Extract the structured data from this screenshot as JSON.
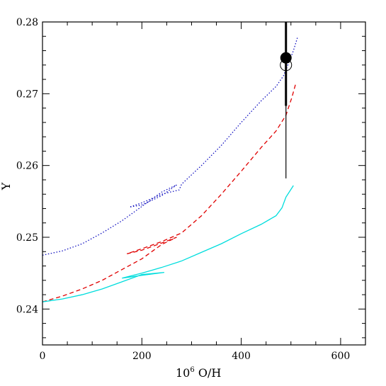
{
  "chart_data": {
    "type": "line",
    "xlabel": "10",
    "xlabel_sup": "6",
    "xlabel_rest": " O/H",
    "ylabel": "Y",
    "xlim": [
      0,
      650
    ],
    "ylim": [
      0.235,
      0.28
    ],
    "x_ticks": [
      0,
      200,
      400,
      600
    ],
    "x_tick_labels": [
      "0",
      "200",
      "400",
      "600"
    ],
    "y_ticks": [
      0.24,
      0.25,
      0.26,
      0.27,
      0.28
    ],
    "y_tick_labels": [
      "0.24",
      "0.25",
      "0.26",
      "0.27",
      "0.28"
    ],
    "grid": false,
    "series": [
      {
        "style": "dotted",
        "color": "#1010c0",
        "points": [
          [
            0,
            0.2475
          ],
          [
            40,
            0.2481
          ],
          [
            80,
            0.2491
          ],
          [
            120,
            0.2506
          ],
          [
            160,
            0.2523
          ],
          [
            200,
            0.2543
          ],
          [
            240,
            0.2563
          ],
          [
            270,
            0.2573
          ],
          [
            240,
            0.2558
          ],
          [
            200,
            0.2545
          ],
          [
            175,
            0.2542
          ],
          [
            200,
            0.2548
          ],
          [
            240,
            0.256
          ],
          [
            275,
            0.2566
          ],
          [
            280,
            0.2574
          ],
          [
            320,
            0.26
          ],
          [
            360,
            0.2628
          ],
          [
            400,
            0.266
          ],
          [
            440,
            0.269
          ],
          [
            470,
            0.271
          ],
          [
            485,
            0.2725
          ],
          [
            495,
            0.2742
          ],
          [
            505,
            0.276
          ],
          [
            513,
            0.2778
          ]
        ]
      },
      {
        "style": "dashed",
        "color": "#e00000",
        "points": [
          [
            0,
            0.241
          ],
          [
            40,
            0.2418
          ],
          [
            80,
            0.2428
          ],
          [
            120,
            0.244
          ],
          [
            160,
            0.2455
          ],
          [
            200,
            0.247
          ],
          [
            240,
            0.249
          ],
          [
            270,
            0.25
          ],
          [
            240,
            0.2492
          ],
          [
            200,
            0.2482
          ],
          [
            170,
            0.2477
          ],
          [
            200,
            0.2484
          ],
          [
            240,
            0.2494
          ],
          [
            280,
            0.2506
          ],
          [
            320,
            0.253
          ],
          [
            360,
            0.256
          ],
          [
            400,
            0.2592
          ],
          [
            440,
            0.2625
          ],
          [
            470,
            0.2648
          ],
          [
            490,
            0.267
          ],
          [
            502,
            0.2695
          ],
          [
            510,
            0.2715
          ]
        ]
      },
      {
        "style": "solid",
        "color": "#00dddd",
        "points": [
          [
            0,
            0.241
          ],
          [
            40,
            0.2414
          ],
          [
            80,
            0.242
          ],
          [
            120,
            0.2428
          ],
          [
            160,
            0.2438
          ],
          [
            200,
            0.2448
          ],
          [
            245,
            0.2451
          ],
          [
            200,
            0.2447
          ],
          [
            160,
            0.2443
          ],
          [
            200,
            0.245
          ],
          [
            240,
            0.2458
          ],
          [
            280,
            0.2467
          ],
          [
            320,
            0.2479
          ],
          [
            360,
            0.2491
          ],
          [
            400,
            0.2505
          ],
          [
            440,
            0.2518
          ],
          [
            470,
            0.253
          ],
          [
            482,
            0.2541
          ],
          [
            490,
            0.2556
          ],
          [
            505,
            0.2572
          ]
        ]
      }
    ],
    "observation": {
      "x": 490,
      "y": 0.275,
      "y_top": 0.28,
      "y_bottom": 0.2582,
      "y_thick_bottom": 0.2683,
      "open_circle_y": 0.274
    }
  }
}
